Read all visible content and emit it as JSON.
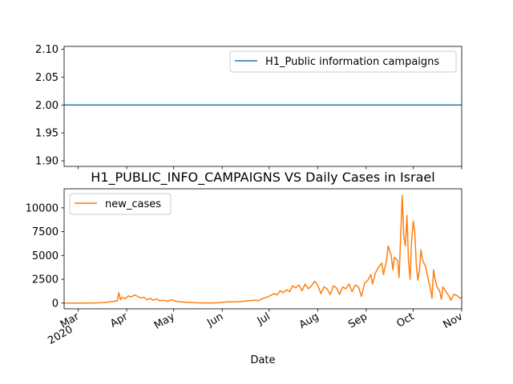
{
  "chart_data": [
    {
      "type": "line",
      "title": "",
      "xlabel": "",
      "ylabel": "",
      "ylim": [
        1.89,
        2.105
      ],
      "yticks": [
        "1.90",
        "1.95",
        "2.00",
        "2.05",
        "2.10"
      ],
      "ytick_values": [
        1.9,
        1.95,
        2.0,
        2.05,
        2.1
      ],
      "legend_position": "upper-right",
      "series": [
        {
          "name": "H1_Public information campaigns",
          "color": "#1f77b4",
          "constant_value": 2.0
        }
      ]
    },
    {
      "type": "line",
      "title": "H1_PUBLIC_INFO_CAMPAIGNS VS Daily Cases in Israel",
      "xlabel": "Date",
      "ylabel": "",
      "ylim": [
        -600,
        12000
      ],
      "yticks": [
        "0",
        "2500",
        "5000",
        "7500",
        "10000"
      ],
      "ytick_values": [
        0,
        2500,
        5000,
        7500,
        10000
      ],
      "legend_position": "upper-left",
      "x_range": [
        "2020-02-21",
        "2020-11-01"
      ],
      "x_ticks": [
        {
          "label": "Mar",
          "sublabel": "2020",
          "date": "2020-03-01"
        },
        {
          "label": "Apr",
          "date": "2020-04-01"
        },
        {
          "label": "May",
          "date": "2020-05-01"
        },
        {
          "label": "Jun",
          "date": "2020-06-01"
        },
        {
          "label": "Jul",
          "date": "2020-07-01"
        },
        {
          "label": "Aug",
          "date": "2020-08-01"
        },
        {
          "label": "Sep",
          "date": "2020-09-01"
        },
        {
          "label": "Oct",
          "date": "2020-10-01"
        },
        {
          "label": "Nov",
          "date": "2020-11-01"
        }
      ],
      "series": [
        {
          "name": "new_cases",
          "color": "#ff7f0e",
          "points": [
            [
              "2020-02-21",
              0
            ],
            [
              "2020-03-01",
              0
            ],
            [
              "2020-03-10",
              10
            ],
            [
              "2020-03-15",
              30
            ],
            [
              "2020-03-18",
              60
            ],
            [
              "2020-03-21",
              120
            ],
            [
              "2020-03-24",
              200
            ],
            [
              "2020-03-26",
              250
            ],
            [
              "2020-03-27",
              1100
            ],
            [
              "2020-03-28",
              350
            ],
            [
              "2020-03-29",
              600
            ],
            [
              "2020-03-31",
              450
            ],
            [
              "2020-04-02",
              750
            ],
            [
              "2020-04-04",
              650
            ],
            [
              "2020-04-06",
              850
            ],
            [
              "2020-04-08",
              700
            ],
            [
              "2020-04-10",
              550
            ],
            [
              "2020-04-12",
              600
            ],
            [
              "2020-04-14",
              350
            ],
            [
              "2020-04-16",
              500
            ],
            [
              "2020-04-18",
              300
            ],
            [
              "2020-04-20",
              450
            ],
            [
              "2020-04-22",
              250
            ],
            [
              "2020-04-24",
              300
            ],
            [
              "2020-04-27",
              200
            ],
            [
              "2020-04-30",
              350
            ],
            [
              "2020-05-01",
              250
            ],
            [
              "2020-05-04",
              150
            ],
            [
              "2020-05-08",
              100
            ],
            [
              "2020-05-12",
              60
            ],
            [
              "2020-05-16",
              30
            ],
            [
              "2020-05-20",
              20
            ],
            [
              "2020-05-25",
              15
            ],
            [
              "2020-05-30",
              40
            ],
            [
              "2020-06-02",
              100
            ],
            [
              "2020-06-05",
              130
            ],
            [
              "2020-06-08",
              120
            ],
            [
              "2020-06-12",
              150
            ],
            [
              "2020-06-15",
              200
            ],
            [
              "2020-06-18",
              250
            ],
            [
              "2020-06-22",
              300
            ],
            [
              "2020-06-24",
              250
            ],
            [
              "2020-06-26",
              400
            ],
            [
              "2020-06-28",
              550
            ],
            [
              "2020-06-30",
              650
            ],
            [
              "2020-07-02",
              800
            ],
            [
              "2020-07-04",
              1000
            ],
            [
              "2020-07-06",
              850
            ],
            [
              "2020-07-08",
              1300
            ],
            [
              "2020-07-10",
              1100
            ],
            [
              "2020-07-12",
              1400
            ],
            [
              "2020-07-14",
              1200
            ],
            [
              "2020-07-16",
              1800
            ],
            [
              "2020-07-18",
              1600
            ],
            [
              "2020-07-20",
              1900
            ],
            [
              "2020-07-22",
              1300
            ],
            [
              "2020-07-24",
              2000
            ],
            [
              "2020-07-26",
              1500
            ],
            [
              "2020-07-28",
              1800
            ],
            [
              "2020-07-30",
              2300
            ],
            [
              "2020-08-01",
              1900
            ],
            [
              "2020-08-03",
              1000
            ],
            [
              "2020-08-05",
              1700
            ],
            [
              "2020-08-07",
              1500
            ],
            [
              "2020-08-09",
              900
            ],
            [
              "2020-08-11",
              1800
            ],
            [
              "2020-08-13",
              1600
            ],
            [
              "2020-08-15",
              900
            ],
            [
              "2020-08-17",
              1700
            ],
            [
              "2020-08-19",
              1500
            ],
            [
              "2020-08-21",
              2000
            ],
            [
              "2020-08-23",
              1200
            ],
            [
              "2020-08-25",
              1900
            ],
            [
              "2020-08-27",
              1700
            ],
            [
              "2020-08-29",
              700
            ],
            [
              "2020-08-31",
              2100
            ],
            [
              "2020-09-02",
              2400
            ],
            [
              "2020-09-04",
              3000
            ],
            [
              "2020-09-05",
              2000
            ],
            [
              "2020-09-07",
              3200
            ],
            [
              "2020-09-09",
              3800
            ],
            [
              "2020-09-11",
              4200
            ],
            [
              "2020-09-12",
              3000
            ],
            [
              "2020-09-14",
              4500
            ],
            [
              "2020-09-15",
              6000
            ],
            [
              "2020-09-17",
              5000
            ],
            [
              "2020-09-18",
              3500
            ],
            [
              "2020-09-19",
              4800
            ],
            [
              "2020-09-21",
              4500
            ],
            [
              "2020-09-22",
              2700
            ],
            [
              "2020-09-24",
              11300
            ],
            [
              "2020-09-25",
              7000
            ],
            [
              "2020-09-26",
              6000
            ],
            [
              "2020-09-27",
              9200
            ],
            [
              "2020-09-28",
              4500
            ],
            [
              "2020-09-29",
              2500
            ],
            [
              "2020-09-30",
              6500
            ],
            [
              "2020-10-01",
              8600
            ],
            [
              "2020-10-02",
              7500
            ],
            [
              "2020-10-03",
              4000
            ],
            [
              "2020-10-04",
              2400
            ],
            [
              "2020-10-05",
              3500
            ],
            [
              "2020-10-06",
              5600
            ],
            [
              "2020-10-07",
              4500
            ],
            [
              "2020-10-09",
              3800
            ],
            [
              "2020-10-11",
              2200
            ],
            [
              "2020-10-12",
              1600
            ],
            [
              "2020-10-13",
              500
            ],
            [
              "2020-10-14",
              3500
            ],
            [
              "2020-10-15",
              2500
            ],
            [
              "2020-10-16",
              1800
            ],
            [
              "2020-10-18",
              1200
            ],
            [
              "2020-10-19",
              400
            ],
            [
              "2020-10-20",
              1700
            ],
            [
              "2020-10-22",
              1200
            ],
            [
              "2020-10-24",
              700
            ],
            [
              "2020-10-25",
              300
            ],
            [
              "2020-10-27",
              900
            ],
            [
              "2020-10-29",
              800
            ],
            [
              "2020-10-31",
              500
            ],
            [
              "2020-11-01",
              600
            ]
          ]
        }
      ]
    }
  ]
}
